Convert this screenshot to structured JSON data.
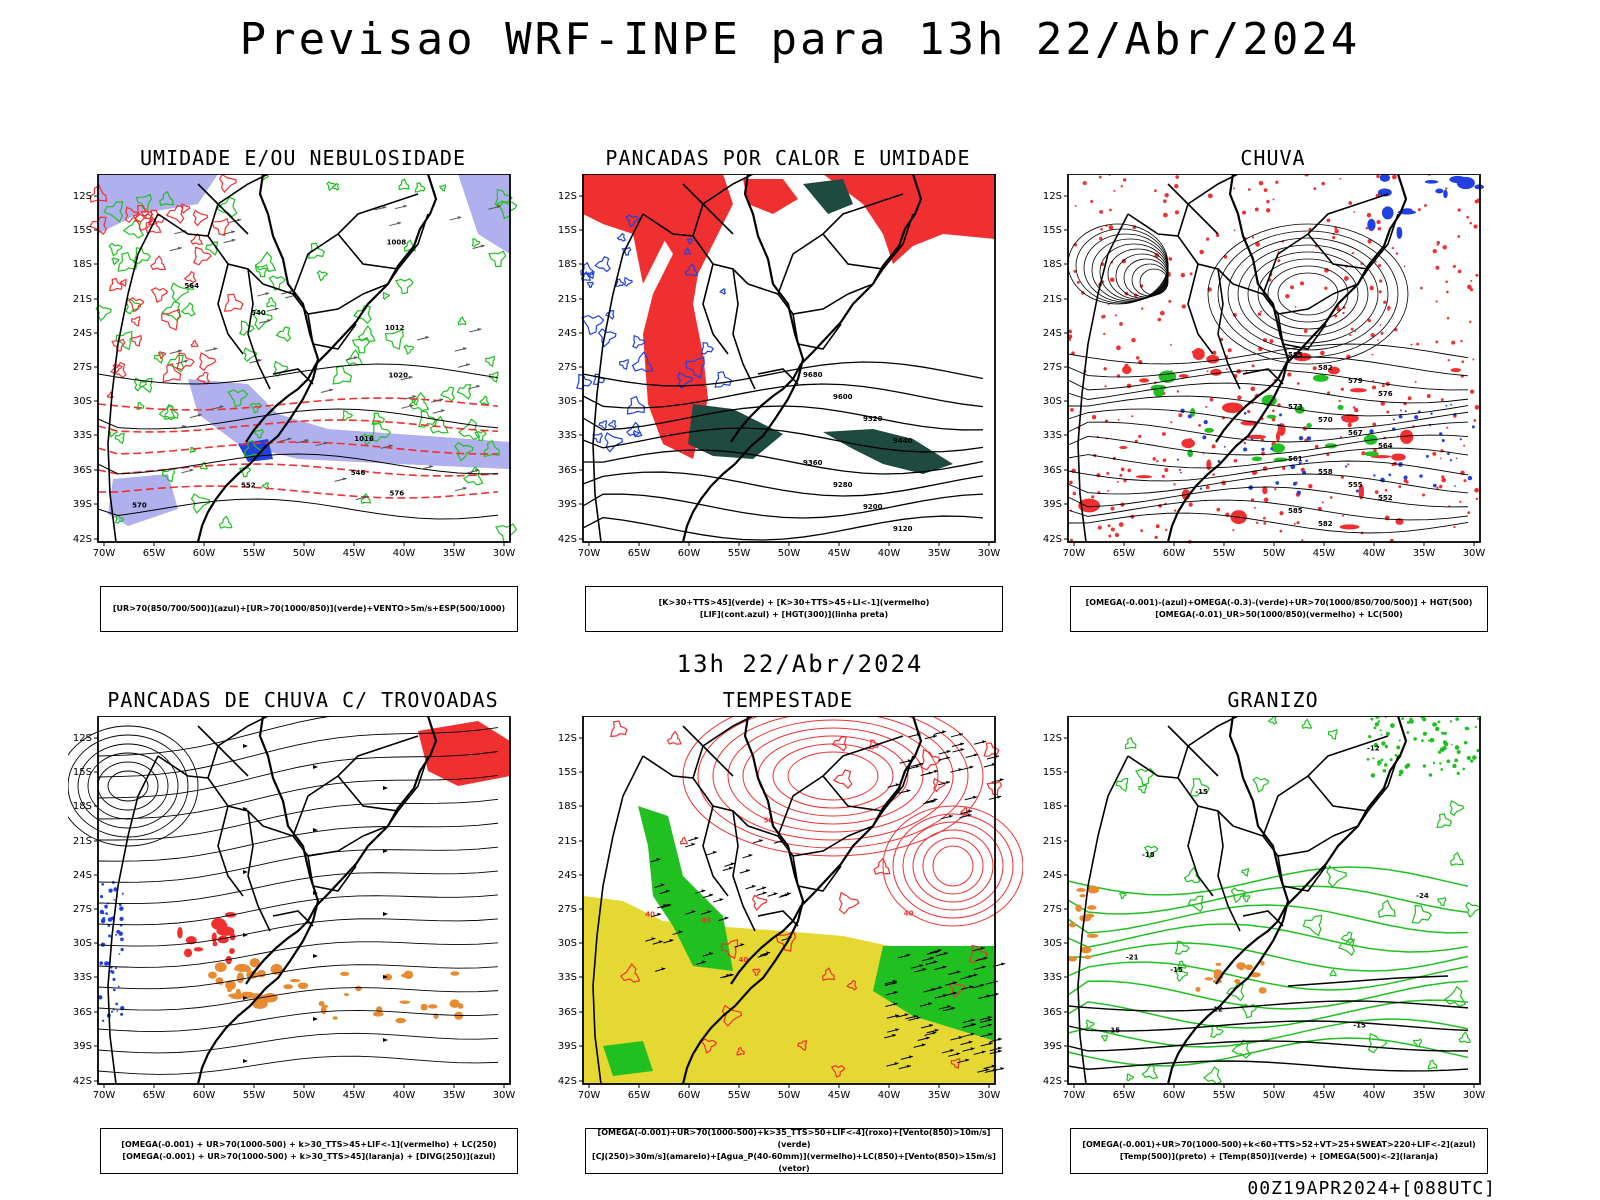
{
  "header": {
    "title": "Previsao WRF-INPE  para 13h 22/Abr/2024"
  },
  "middle_label": "13h 22/Abr/2024",
  "footer": "00Z19APR2024+[088UTC]",
  "axes": {
    "lat_labels": [
      "12S",
      "15S",
      "18S",
      "21S",
      "24S",
      "27S",
      "30S",
      "33S",
      "36S",
      "39S",
      "42S"
    ],
    "lon_labels": [
      "70W",
      "65W",
      "60W",
      "55W",
      "50W",
      "45W",
      "40W",
      "35W",
      "30W"
    ]
  },
  "panels": [
    {
      "title": "UMIDADE E/OU NEBULOSIDADE",
      "legend": [
        "[UR>70(850/700/500)](azul)+[UR>70(1000/850)](verde)+VENTO>5m/s+ESP(500/1000)"
      ],
      "contour_labels": [
        "1012",
        "1016",
        "570",
        "576",
        "564",
        "552",
        "546",
        "540",
        "1008",
        "1020"
      ]
    },
    {
      "title": "PANCADAS POR CALOR E UMIDADE",
      "legend": [
        "[K>30+TTS>45](verde) + [K>30+TTS>45+LI<-1](vermelho)",
        "[LIF](cont.azul) + [HGT(300)](linha preta)"
      ],
      "contour_labels": [
        "9680",
        "9600",
        "9520",
        "9440",
        "9360",
        "9280",
        "9200",
        "9120"
      ]
    },
    {
      "title": "CHUVA",
      "legend": [
        "[OMEGA(-0.001)-(azul)+OMEGA(-0.3)-(verde)+UR>70(1000/850/700/500)] + HGT(500)",
        "[OMEGA(-0.01)_UR>50(1000/850)(vermelho) + LC(500)"
      ],
      "contour_labels": [
        "585",
        "582",
        "579",
        "576",
        "573",
        "570",
        "567",
        "564",
        "561",
        "558",
        "555",
        "552"
      ]
    },
    {
      "title": "PANCADAS DE CHUVA C/ TROVOADAS",
      "legend": [
        "[OMEGA(-0.001) + UR>70(1000-500) + k>30_TTS>45+LIF<-1](vermelho) + LC(250)",
        "[OMEGA(-0.001) + UR>70(1000-500) + k>30_TTS>45](laranja) + [DIVG(250)](azul)"
      ],
      "contour_labels": []
    },
    {
      "title": "TEMPESTADE",
      "legend": [
        "[OMEGA(-0.001)+UR>70(1000-500)+k>35_TTS>50+LIF<-4](roxo)+[Vento(850)>10m/s](verde)",
        "[CJ(250)>30m/s](amarelo)+[Agua_P(40-60mm)](vermelho)+LC(850)+[Vento(850)>15m/s](vetor)"
      ],
      "contour_labels": [
        "40",
        "40",
        "40",
        "50",
        "40"
      ]
    },
    {
      "title": "GRANIZO",
      "legend": [
        "[OMEGA(-0.001)+UR>70(1000-500)+k<60+TTS>52+VT>25+SWEAT>220+LIF<-2](azul)",
        "[Temp(500)](preto) + [Temp(850)](verde) + [OMEGA(500)<-2](laranja)"
      ],
      "contour_labels": [
        "-12",
        "-15",
        "-15",
        "-15",
        "-18",
        "-21",
        "-24",
        "15",
        "12"
      ]
    }
  ],
  "colors": {
    "red": "#f03030",
    "green": "#20c020",
    "blue": "#2040e0",
    "lavender": "#b0b0ee",
    "yellow": "#e6d832",
    "orange": "#e88a30",
    "darkgreen": "#1e4a40"
  }
}
